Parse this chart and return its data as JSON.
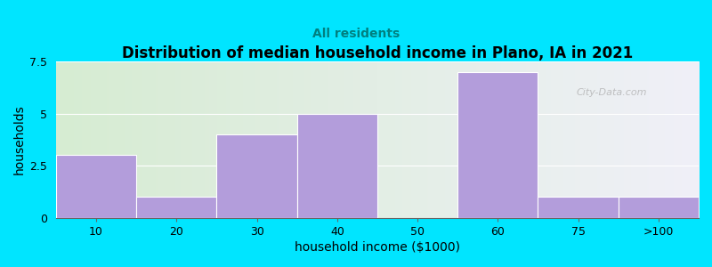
{
  "title": "Distribution of median household income in Plano, IA in 2021",
  "subtitle": "All residents",
  "xlabel": "household income ($1000)",
  "ylabel": "households",
  "categories": [
    "10",
    "20",
    "30",
    "40",
    "50",
    "60",
    "75",
    ">100"
  ],
  "values": [
    3,
    1,
    4,
    5,
    0,
    7,
    1,
    1
  ],
  "bar_color": "#b39ddb",
  "background_color": "#00e5ff",
  "grad_left_color": "#d6ecd2",
  "grad_right_color": "#f0f0f8",
  "ylim": [
    0,
    7.5
  ],
  "yticks": [
    0,
    2.5,
    5,
    7.5
  ],
  "title_fontsize": 12,
  "subtitle_fontsize": 10,
  "tick_fontsize": 9,
  "label_fontsize": 10,
  "watermark": "City-Data.com"
}
